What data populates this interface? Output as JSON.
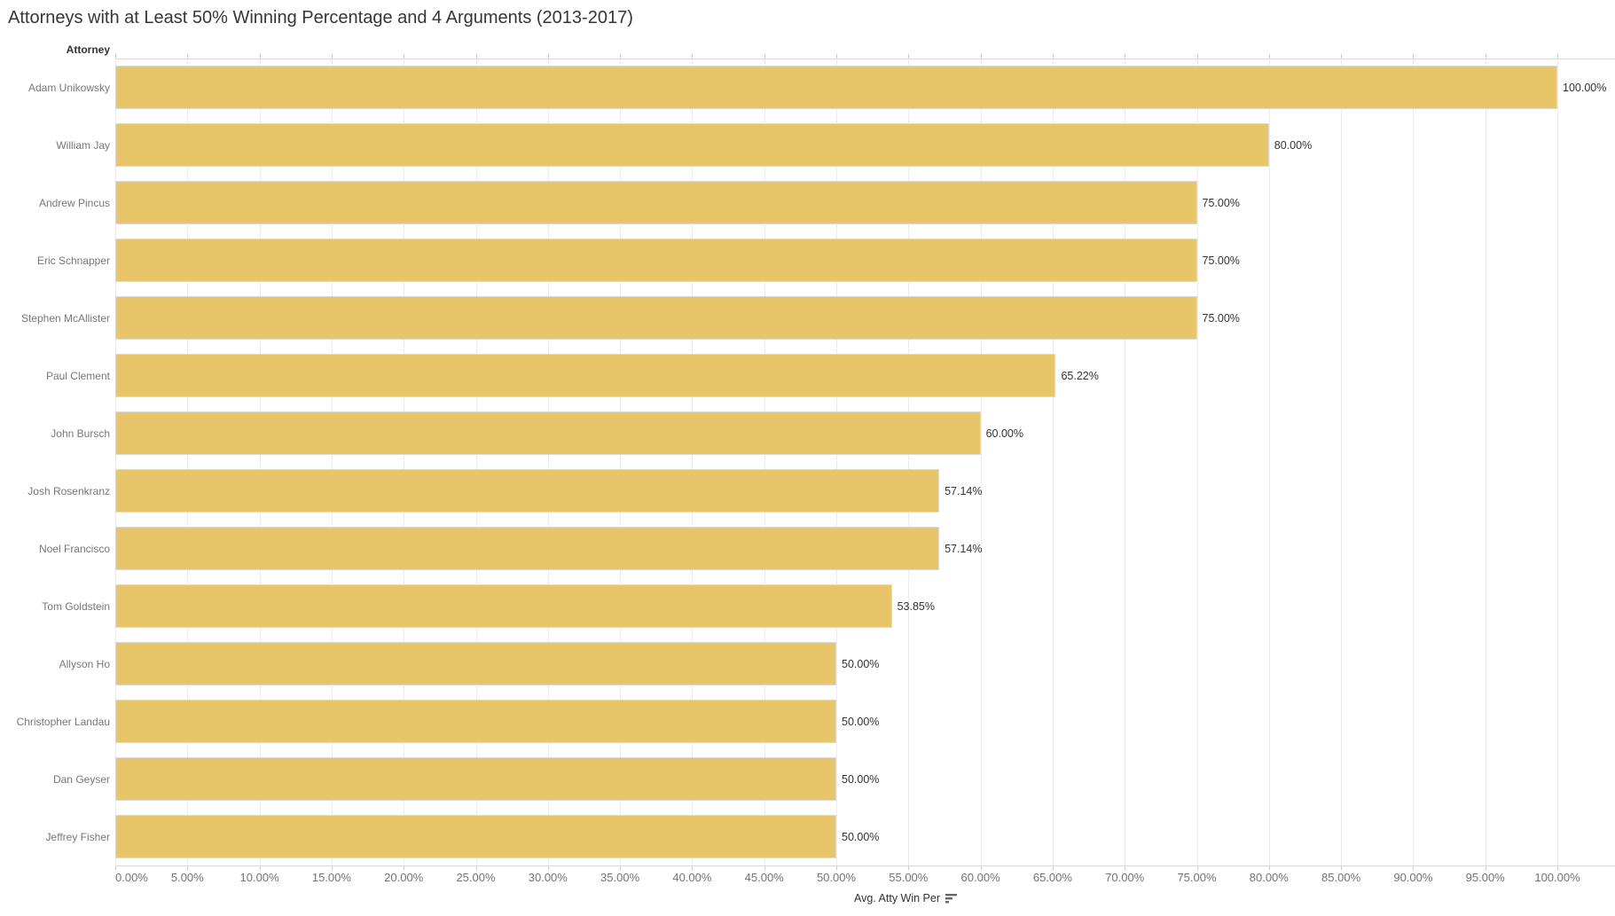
{
  "title": "Attorneys with at Least 50% Winning Percentage and 4 Arguments (2013-2017)",
  "row_header": "Attorney",
  "axis": {
    "label": "Avg. Atty Win Per",
    "sort_icon": "sort-descending-icon",
    "ticks": [
      "0.00%",
      "5.00%",
      "10.00%",
      "15.00%",
      "20.00%",
      "25.00%",
      "30.00%",
      "35.00%",
      "40.00%",
      "45.00%",
      "50.00%",
      "55.00%",
      "60.00%",
      "65.00%",
      "70.00%",
      "75.00%",
      "80.00%",
      "85.00%",
      "90.00%",
      "95.00%",
      "100.00%"
    ],
    "min": 0,
    "max": 100,
    "tick_step": 5
  },
  "chart_data": {
    "type": "bar",
    "orientation": "horizontal",
    "title": "Attorneys with at Least 50% Winning Percentage and 4 Arguments (2013-2017)",
    "categories": [
      "Adam Unikowsky",
      "William Jay",
      "Andrew Pincus",
      "Eric Schnapper",
      "Stephen McAllister",
      "Paul Clement",
      "John Bursch",
      "Josh Rosenkranz",
      "Noel Francisco",
      "Tom Goldstein",
      "Allyson Ho",
      "Christopher Landau",
      "Dan Geyser",
      "Jeffrey Fisher"
    ],
    "values": [
      100.0,
      80.0,
      75.0,
      75.0,
      75.0,
      65.22,
      60.0,
      57.14,
      57.14,
      53.85,
      50.0,
      50.0,
      50.0,
      50.0
    ],
    "labels": [
      "100.00%",
      "80.00%",
      "75.00%",
      "75.00%",
      "75.00%",
      "65.22%",
      "60.00%",
      "57.14%",
      "57.14%",
      "53.85%",
      "50.00%",
      "50.00%",
      "50.00%",
      "50.00%"
    ],
    "xlabel": "Avg. Atty Win Per",
    "ylabel": "Attorney",
    "xlim": [
      0,
      103.9
    ],
    "grid": true,
    "legend": "none",
    "bar_color": "#E8C568"
  },
  "colors": {
    "bar": "#E8C568",
    "bar_border": "#dadada",
    "gridline": "#ececec",
    "axis_line": "#d9d9d9",
    "tick_mark": "#c9c9c9",
    "title_text": "#363636",
    "label_text": "#777777",
    "tick_text": "#737373",
    "value_text": "#333333",
    "background": "#ffffff"
  }
}
